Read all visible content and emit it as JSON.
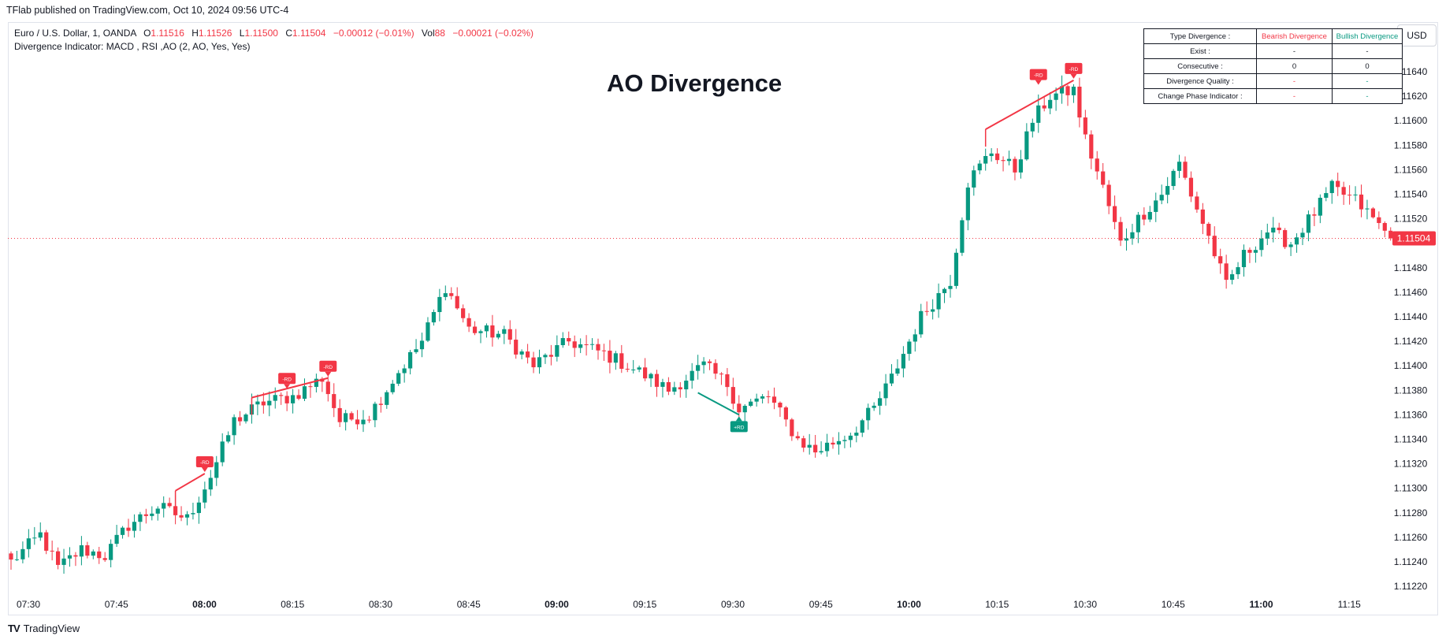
{
  "header": {
    "published_text": "TFlab published on TradingView.com, Oct 10, 2024 09:56 UTC-4"
  },
  "legend": {
    "symbol": "Euro / U.S. Dollar, 1, OANDA",
    "o_label": "O",
    "o_value": "1.11516",
    "h_label": "H",
    "h_value": "1.11526",
    "l_label": "L",
    "l_value": "1.11500",
    "c_label": "C",
    "c_value": "1.11504",
    "change": "−0.00012 (−0.01%)",
    "vol_label": "Vol",
    "vol_value": "88",
    "vol_change": "−0.00021 (−0.02%)",
    "indicator": "Divergence Indicator: MACD , RSI ,AO (2, AO, Yes, Yes)"
  },
  "currency_button": "USD",
  "title": "AO Divergence",
  "table": {
    "header": [
      "Type Divergence :",
      "Bearish Divergence",
      "Bullish Divergence"
    ],
    "rows": [
      [
        "Exist :",
        "-",
        "-"
      ],
      [
        "Consecutive :",
        "0",
        "0"
      ],
      [
        "Divergence Quality :",
        "-",
        "-"
      ],
      [
        "Change Phase Indicator :",
        "-",
        "-"
      ]
    ]
  },
  "footer": {
    "brand": "TradingView",
    "logo": "TV"
  },
  "colors": {
    "up": "#089981",
    "down": "#f23645",
    "text": "#131722",
    "grid": "#e0e3eb"
  },
  "chart_data": {
    "type": "candlestick",
    "symbol": "EURUSD",
    "interval": "1",
    "ylim": [
      1.1121,
      1.1166
    ],
    "y_ticks": [
      "1.11640",
      "1.11620",
      "1.11600",
      "1.11580",
      "1.11560",
      "1.11540",
      "1.11520",
      "1.11480",
      "1.11460",
      "1.11440",
      "1.11420",
      "1.11400",
      "1.11380",
      "1.11360",
      "1.11340",
      "1.11320",
      "1.11300",
      "1.11280",
      "1.11260",
      "1.11240",
      "1.11220"
    ],
    "x_ticks": [
      {
        "label": "07:30",
        "bar": 0
      },
      {
        "label": "07:45",
        "bar": 15
      },
      {
        "label": "08:00",
        "bar": 30,
        "bold": true
      },
      {
        "label": "08:15",
        "bar": 45
      },
      {
        "label": "08:30",
        "bar": 60
      },
      {
        "label": "08:45",
        "bar": 75
      },
      {
        "label": "09:00",
        "bar": 90,
        "bold": true
      },
      {
        "label": "09:15",
        "bar": 105
      },
      {
        "label": "09:30",
        "bar": 120
      },
      {
        "label": "09:45",
        "bar": 135
      },
      {
        "label": "10:00",
        "bar": 150,
        "bold": true
      },
      {
        "label": "10:15",
        "bar": 165
      },
      {
        "label": "10:30",
        "bar": 180
      },
      {
        "label": "10:45",
        "bar": 195
      },
      {
        "label": "11:00",
        "bar": 210,
        "bold": true
      },
      {
        "label": "11:15",
        "bar": 225
      }
    ],
    "last_price": 1.11504,
    "last_price_label": "1.11504",
    "close_anchors": [
      [
        0,
        1.1124
      ],
      [
        5,
        1.11262
      ],
      [
        8,
        1.11235
      ],
      [
        12,
        1.1125
      ],
      [
        16,
        1.11245
      ],
      [
        20,
        1.1127
      ],
      [
        25,
        1.11285
      ],
      [
        30,
        1.11275
      ],
      [
        34,
        1.1131
      ],
      [
        38,
        1.11355
      ],
      [
        43,
        1.1137
      ],
      [
        48,
        1.11375
      ],
      [
        53,
        1.1139
      ],
      [
        56,
        1.11355
      ],
      [
        61,
        1.1136
      ],
      [
        66,
        1.11395
      ],
      [
        70,
        1.1142
      ],
      [
        74,
        1.11465
      ],
      [
        78,
        1.1143
      ],
      [
        84,
        1.11425
      ],
      [
        89,
        1.114
      ],
      [
        95,
        1.1142
      ],
      [
        101,
        1.1141
      ],
      [
        107,
        1.11395
      ],
      [
        112,
        1.1138
      ],
      [
        118,
        1.114
      ],
      [
        122,
        1.11385
      ],
      [
        124,
        1.11365
      ],
      [
        129,
        1.11375
      ],
      [
        134,
        1.1134
      ],
      [
        137,
        1.1133
      ],
      [
        143,
        1.11345
      ],
      [
        147,
        1.11365
      ],
      [
        150,
        1.1139
      ],
      [
        155,
        1.1144
      ],
      [
        160,
        1.1147
      ],
      [
        163,
        1.1155
      ],
      [
        167,
        1.11575
      ],
      [
        171,
        1.1156
      ],
      [
        174,
        1.116
      ],
      [
        177,
        1.1162
      ],
      [
        181,
        1.11625
      ],
      [
        183,
        1.11585
      ],
      [
        186,
        1.11545
      ],
      [
        189,
        1.115
      ],
      [
        192,
        1.1152
      ],
      [
        196,
        1.1154
      ],
      [
        199,
        1.11565
      ],
      [
        201,
        1.1154
      ],
      [
        204,
        1.11505
      ],
      [
        207,
        1.11465
      ],
      [
        210,
        1.1149
      ],
      [
        214,
        1.1151
      ],
      [
        218,
        1.115
      ],
      [
        222,
        1.11525
      ],
      [
        225,
        1.11545
      ],
      [
        229,
        1.11535
      ],
      [
        233,
        1.11515
      ],
      [
        235,
        1.11504
      ]
    ],
    "divergences": [
      {
        "kind": "bearish",
        "label": "-RD",
        "from": [
          28,
          1.11298
        ],
        "to": [
          33,
          1.11312
        ]
      },
      {
        "kind": "bearish",
        "label": "-RD",
        "from": [
          41,
          1.11374
        ],
        "to": [
          54,
          1.1139
        ]
      },
      {
        "kind": "bullish",
        "label": "+RD",
        "from": [
          117,
          1.11378
        ],
        "to": [
          124,
          1.1136
        ]
      },
      {
        "kind": "bearish",
        "label": "-RD",
        "from": [
          166,
          1.11593
        ],
        "to": [
          181,
          1.11633
        ]
      }
    ],
    "rd_markers": [
      {
        "label": "-RD",
        "bar": 33,
        "price": 1.11312,
        "kind": "bearish"
      },
      {
        "label": "-RD",
        "bar": 47,
        "price": 1.1138,
        "kind": "bearish"
      },
      {
        "label": "-RD",
        "bar": 54,
        "price": 1.1139,
        "kind": "bearish"
      },
      {
        "label": "+RD",
        "bar": 124,
        "price": 1.1136,
        "kind": "bullish"
      },
      {
        "label": "-RD",
        "bar": 175,
        "price": 1.11628,
        "kind": "bearish"
      },
      {
        "label": "-RD",
        "bar": 181,
        "price": 1.11633,
        "kind": "bearish"
      }
    ]
  }
}
